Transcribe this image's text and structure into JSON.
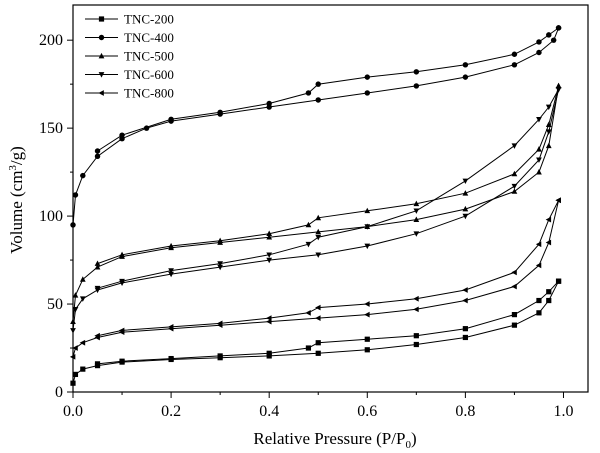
{
  "chart_data": {
    "type": "line",
    "title": "",
    "xlabel": "Relative Pressure (P/P",
    "xlabel_sub": "0",
    "xlabel_close": ")",
    "ylabel_pre": "Volume (cm",
    "ylabel_sup": "3",
    "ylabel_post": "/g)",
    "xlim": [
      0.0,
      1.05
    ],
    "ylim": [
      0,
      220
    ],
    "xticks": [
      "0.0",
      "0.2",
      "0.4",
      "0.6",
      "0.8",
      "1.0"
    ],
    "xtick_values": [
      0.0,
      0.2,
      0.4,
      0.6,
      0.8,
      1.0
    ],
    "yticks": [
      "0",
      "50",
      "100",
      "150",
      "200"
    ],
    "ytick_values": [
      0,
      50,
      100,
      150,
      200
    ],
    "grid": false,
    "legend_position": "top-left",
    "line_color": "#000000",
    "series": [
      {
        "name": "TNC-200",
        "marker": "square",
        "adsorption": [
          [
            0.0,
            5
          ],
          [
            0.005,
            10
          ],
          [
            0.02,
            13
          ],
          [
            0.05,
            15
          ],
          [
            0.1,
            17
          ],
          [
            0.2,
            18.5
          ],
          [
            0.3,
            19.5
          ],
          [
            0.4,
            20.5
          ],
          [
            0.5,
            22
          ],
          [
            0.6,
            24
          ],
          [
            0.7,
            27
          ],
          [
            0.8,
            31
          ],
          [
            0.9,
            38
          ],
          [
            0.95,
            45
          ],
          [
            0.97,
            52
          ],
          [
            0.99,
            63
          ]
        ],
        "desorption": [
          [
            0.99,
            63
          ],
          [
            0.97,
            57
          ],
          [
            0.95,
            52
          ],
          [
            0.9,
            44
          ],
          [
            0.8,
            36
          ],
          [
            0.7,
            32
          ],
          [
            0.6,
            30
          ],
          [
            0.5,
            28
          ],
          [
            0.48,
            25
          ],
          [
            0.4,
            22
          ],
          [
            0.3,
            20.5
          ],
          [
            0.2,
            19
          ],
          [
            0.1,
            17.5
          ],
          [
            0.05,
            16
          ]
        ]
      },
      {
        "name": "TNC-400",
        "marker": "circle",
        "adsorption": [
          [
            0.0,
            95
          ],
          [
            0.005,
            112
          ],
          [
            0.02,
            123
          ],
          [
            0.05,
            134
          ],
          [
            0.1,
            144
          ],
          [
            0.15,
            150
          ],
          [
            0.2,
            154
          ],
          [
            0.3,
            158
          ],
          [
            0.4,
            162
          ],
          [
            0.5,
            166
          ],
          [
            0.6,
            170
          ],
          [
            0.7,
            174
          ],
          [
            0.8,
            179
          ],
          [
            0.9,
            186
          ],
          [
            0.95,
            193
          ],
          [
            0.98,
            200
          ],
          [
            0.99,
            207
          ]
        ],
        "desorption": [
          [
            0.99,
            207
          ],
          [
            0.97,
            203
          ],
          [
            0.95,
            199
          ],
          [
            0.9,
            192
          ],
          [
            0.8,
            186
          ],
          [
            0.7,
            182
          ],
          [
            0.6,
            179
          ],
          [
            0.5,
            175
          ],
          [
            0.48,
            170
          ],
          [
            0.4,
            164
          ],
          [
            0.3,
            159
          ],
          [
            0.2,
            155
          ],
          [
            0.1,
            146
          ],
          [
            0.05,
            137
          ]
        ]
      },
      {
        "name": "TNC-500",
        "marker": "triangle-up",
        "adsorption": [
          [
            0.0,
            40
          ],
          [
            0.005,
            55
          ],
          [
            0.02,
            64
          ],
          [
            0.05,
            71
          ],
          [
            0.1,
            77
          ],
          [
            0.2,
            82
          ],
          [
            0.3,
            85
          ],
          [
            0.4,
            88
          ],
          [
            0.5,
            91
          ],
          [
            0.6,
            94
          ],
          [
            0.7,
            98
          ],
          [
            0.8,
            104
          ],
          [
            0.9,
            114
          ],
          [
            0.95,
            125
          ],
          [
            0.97,
            140
          ],
          [
            0.99,
            174
          ]
        ],
        "desorption": [
          [
            0.99,
            174
          ],
          [
            0.97,
            152
          ],
          [
            0.95,
            138
          ],
          [
            0.9,
            124
          ],
          [
            0.8,
            113
          ],
          [
            0.7,
            107
          ],
          [
            0.6,
            103
          ],
          [
            0.5,
            99
          ],
          [
            0.48,
            95
          ],
          [
            0.4,
            90
          ],
          [
            0.3,
            86
          ],
          [
            0.2,
            83
          ],
          [
            0.1,
            78
          ],
          [
            0.05,
            73
          ]
        ]
      },
      {
        "name": "TNC-600",
        "marker": "triangle-down",
        "adsorption": [
          [
            0.0,
            35
          ],
          [
            0.005,
            47
          ],
          [
            0.02,
            53
          ],
          [
            0.05,
            58
          ],
          [
            0.1,
            62
          ],
          [
            0.2,
            67
          ],
          [
            0.3,
            71
          ],
          [
            0.4,
            75
          ],
          [
            0.5,
            78
          ],
          [
            0.6,
            83
          ],
          [
            0.7,
            90
          ],
          [
            0.8,
            100
          ],
          [
            0.9,
            117
          ],
          [
            0.95,
            132
          ],
          [
            0.97,
            148
          ],
          [
            0.99,
            172
          ]
        ],
        "desorption": [
          [
            0.99,
            172
          ],
          [
            0.97,
            162
          ],
          [
            0.95,
            155
          ],
          [
            0.9,
            140
          ],
          [
            0.8,
            120
          ],
          [
            0.7,
            103
          ],
          [
            0.6,
            94
          ],
          [
            0.5,
            88
          ],
          [
            0.48,
            84
          ],
          [
            0.4,
            78
          ],
          [
            0.3,
            73
          ],
          [
            0.2,
            69
          ],
          [
            0.1,
            63
          ],
          [
            0.05,
            59
          ]
        ]
      },
      {
        "name": "TNC-800",
        "marker": "triangle-left",
        "adsorption": [
          [
            0.0,
            20
          ],
          [
            0.005,
            25
          ],
          [
            0.02,
            28
          ],
          [
            0.05,
            31
          ],
          [
            0.1,
            34
          ],
          [
            0.2,
            36
          ],
          [
            0.3,
            38
          ],
          [
            0.4,
            40
          ],
          [
            0.5,
            42
          ],
          [
            0.6,
            44
          ],
          [
            0.7,
            47
          ],
          [
            0.8,
            52
          ],
          [
            0.9,
            60
          ],
          [
            0.95,
            72
          ],
          [
            0.97,
            85
          ],
          [
            0.99,
            109
          ]
        ],
        "desorption": [
          [
            0.99,
            109
          ],
          [
            0.97,
            98
          ],
          [
            0.95,
            84
          ],
          [
            0.9,
            68
          ],
          [
            0.8,
            58
          ],
          [
            0.7,
            53
          ],
          [
            0.6,
            50
          ],
          [
            0.5,
            48
          ],
          [
            0.48,
            45
          ],
          [
            0.4,
            42
          ],
          [
            0.3,
            39
          ],
          [
            0.2,
            37
          ],
          [
            0.1,
            35
          ],
          [
            0.05,
            32
          ]
        ]
      }
    ]
  }
}
